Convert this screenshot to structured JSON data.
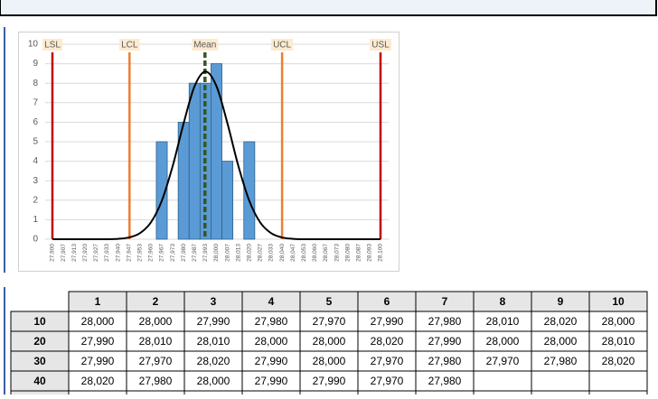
{
  "chart_data": {
    "type": "bar",
    "categories": [
      "27,900",
      "27,907",
      "27,913",
      "27,920",
      "27,927",
      "27,933",
      "27,940",
      "27,947",
      "27,953",
      "27,960",
      "27,967",
      "27,973",
      "27,980",
      "27,987",
      "27,993",
      "28,000",
      "28,007",
      "28,013",
      "28,020",
      "28,027",
      "28,033",
      "28,040",
      "28,047",
      "28,053",
      "28,060",
      "28,067",
      "28,073",
      "28,080",
      "28,087",
      "28,093",
      "28,100"
    ],
    "values": [
      0,
      0,
      0,
      0,
      0,
      0,
      0,
      0,
      0,
      0,
      5,
      0,
      6,
      8,
      8,
      9,
      4,
      0,
      5,
      0,
      0,
      0,
      0,
      0,
      0,
      0,
      0,
      0,
      0,
      0,
      0
    ],
    "curve_values": [
      0,
      0,
      0,
      0,
      0,
      0,
      0.02,
      0.09,
      0.31,
      0.86,
      1.97,
      3.76,
      5.95,
      7.85,
      8.6,
      7.85,
      5.95,
      3.76,
      1.97,
      0.86,
      0.31,
      0.09,
      0.02,
      0,
      0,
      0,
      0,
      0,
      0,
      0,
      0
    ],
    "color": "#5b9bd5",
    "curve_color": "#000000",
    "xlim": [
      27.9,
      28.1
    ],
    "ylim": [
      0,
      10
    ],
    "yticks": [
      0,
      1,
      2,
      3,
      4,
      5,
      6,
      7,
      8,
      9,
      10
    ],
    "grid": true,
    "reference_lines": [
      {
        "label": "LSL",
        "value": 27.9,
        "color": "#c00000",
        "style": "solid"
      },
      {
        "label": "LCL",
        "value": 27.947,
        "color": "#ed7d31",
        "style": "solid"
      },
      {
        "label": "Mean",
        "value": 27.993,
        "color": "#375623",
        "style": "dashed"
      },
      {
        "label": "UCL",
        "value": 28.04,
        "color": "#ed7d31",
        "style": "solid"
      },
      {
        "label": "USL",
        "value": 28.1,
        "color": "#c00000",
        "style": "solid"
      }
    ]
  },
  "table": {
    "columns": [
      "1",
      "2",
      "3",
      "4",
      "5",
      "6",
      "7",
      "8",
      "9",
      "10"
    ],
    "rows": [
      {
        "label": "10",
        "cells": [
          "28,000",
          "28,000",
          "27,990",
          "27,980",
          "27,970",
          "27,990",
          "27,980",
          "28,010",
          "28,020",
          "28,000"
        ]
      },
      {
        "label": "20",
        "cells": [
          "27,990",
          "28,010",
          "28,010",
          "28,000",
          "28,000",
          "28,020",
          "27,990",
          "28,000",
          "28,000",
          "28,010"
        ]
      },
      {
        "label": "30",
        "cells": [
          "27,990",
          "27,970",
          "28,020",
          "27,990",
          "28,000",
          "27,970",
          "27,980",
          "27,970",
          "27,980",
          "28,020"
        ]
      },
      {
        "label": "40",
        "cells": [
          "28,020",
          "27,980",
          "28,000",
          "27,990",
          "27,990",
          "27,970",
          "27,980"
        ]
      }
    ]
  }
}
